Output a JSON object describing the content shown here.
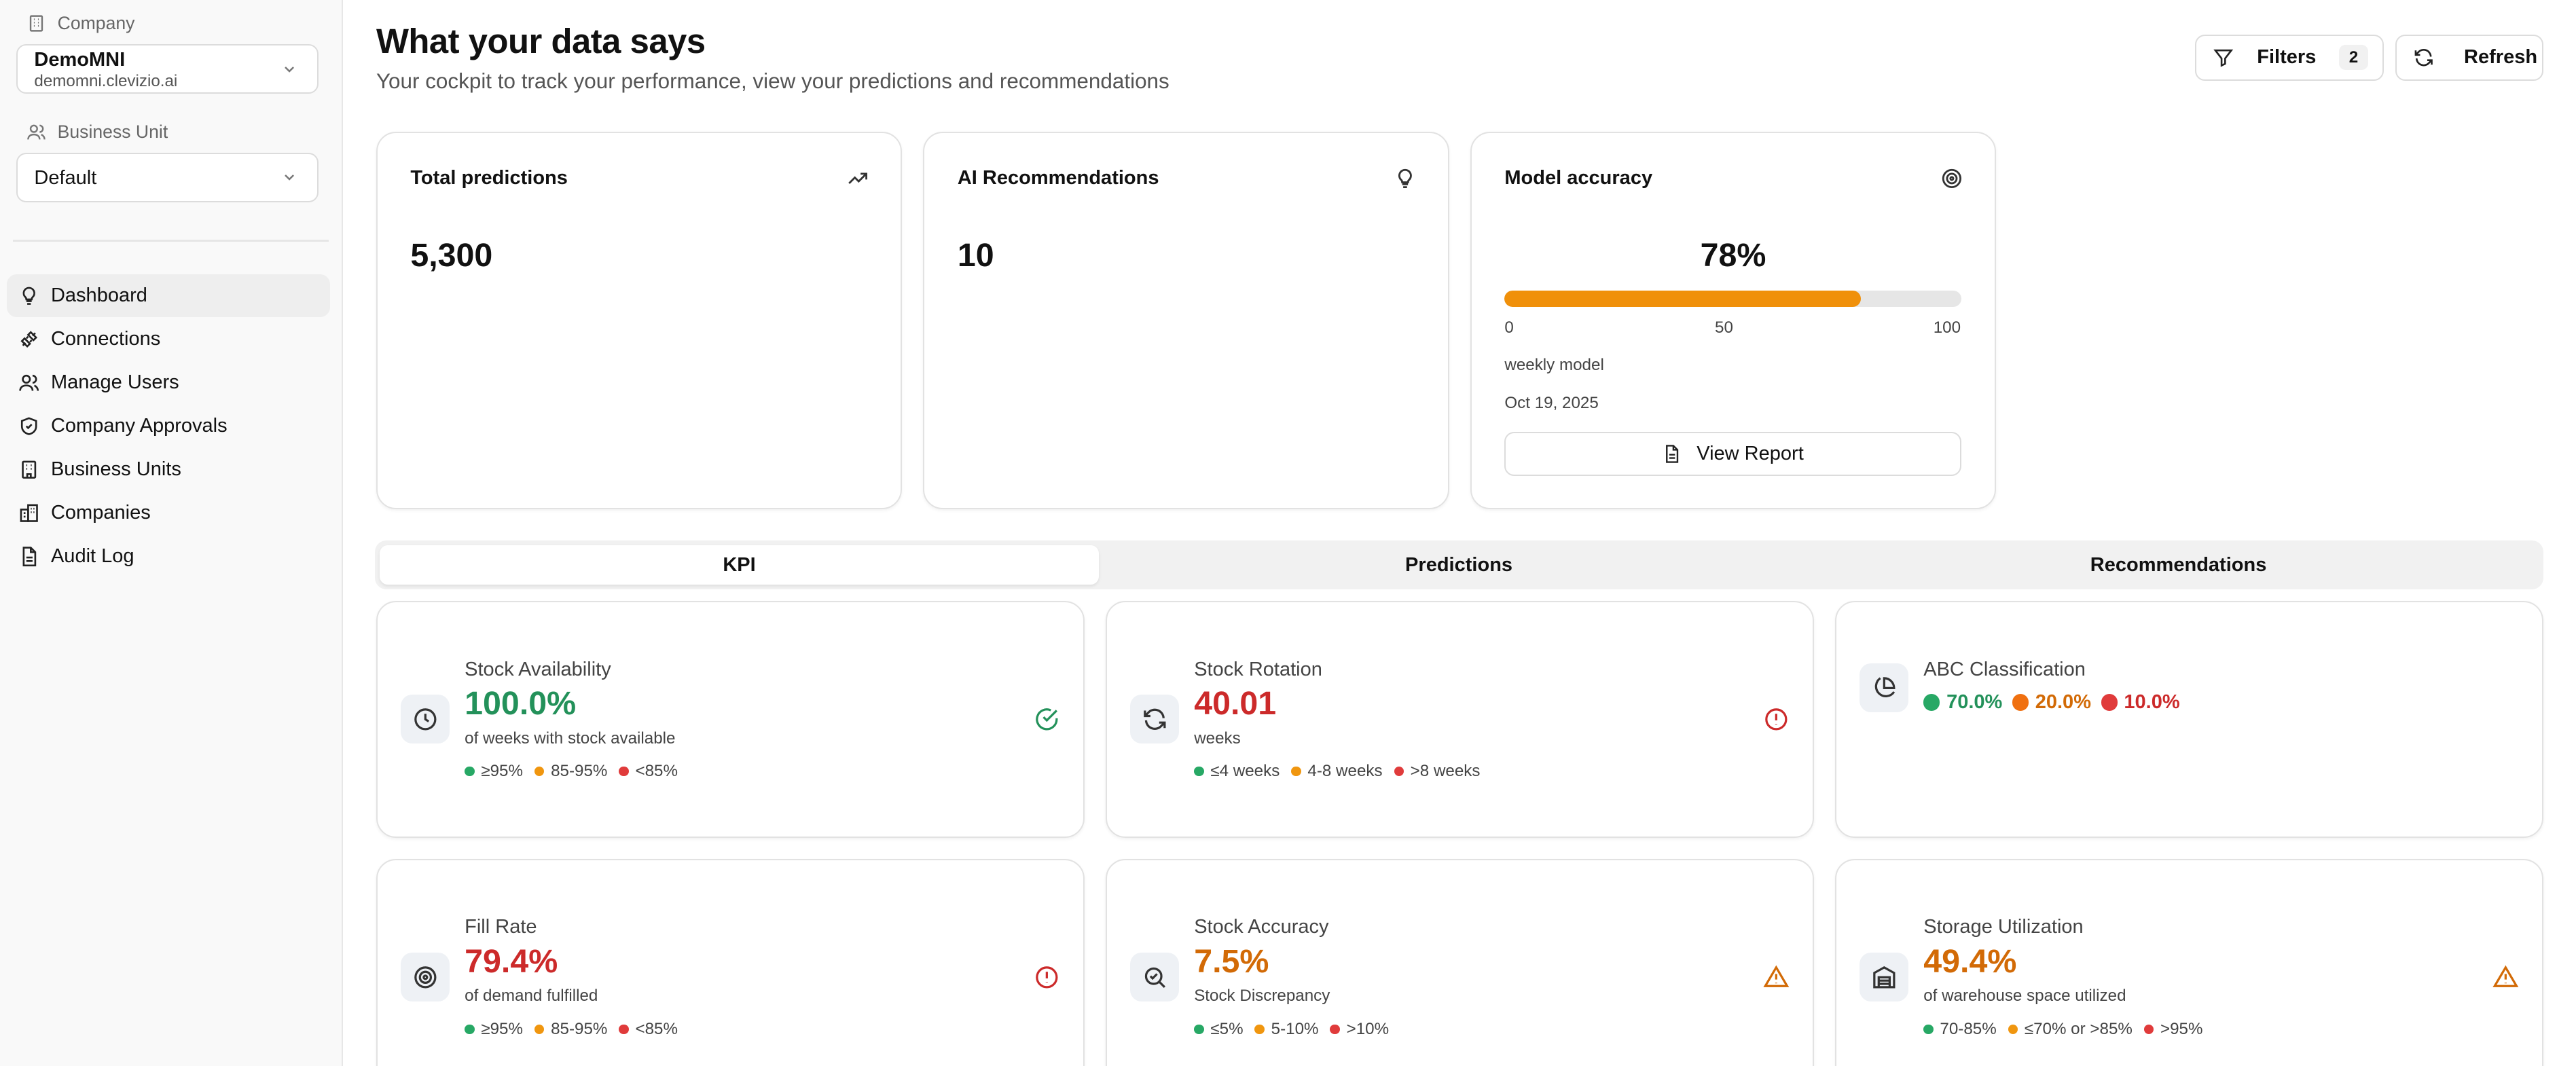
{
  "sidebar": {
    "company_label": "Company",
    "company_name": "DemoMNI",
    "company_domain": "demomni.clevizio.ai",
    "business_unit_label": "Business Unit",
    "business_unit_value": "Default",
    "nav": [
      {
        "label": "Dashboard",
        "icon": "lightbulb-icon",
        "active": true
      },
      {
        "label": "Connections",
        "icon": "plug-icon"
      },
      {
        "label": "Manage Users",
        "icon": "users-icon"
      },
      {
        "label": "Company Approvals",
        "icon": "shield-check-icon"
      },
      {
        "label": "Business Units",
        "icon": "building-icon"
      },
      {
        "label": "Companies",
        "icon": "buildings-icon"
      },
      {
        "label": "Audit Log",
        "icon": "file-text-icon"
      }
    ]
  },
  "header": {
    "title": "What your data says",
    "subtitle": "Your cockpit to track your performance, view your predictions and recommendations",
    "filters_label": "Filters",
    "filters_count": "2",
    "refresh_label": "Refresh"
  },
  "summary": {
    "total_predictions": {
      "title": "Total predictions",
      "value": "5,300",
      "icon": "trending-up-icon"
    },
    "ai_recommendations": {
      "title": "AI Recommendations",
      "value": "10",
      "icon": "lightbulb-icon"
    },
    "model_accuracy": {
      "title": "Model accuracy",
      "value": "78%",
      "level": 0.78,
      "tick_min": "0",
      "tick_mid": "50",
      "tick_max": "100",
      "model": "weekly model",
      "date": "Oct 19, 2025",
      "view_report_label": "View Report",
      "icon": "target-icon"
    }
  },
  "tabs": [
    {
      "label": "KPI",
      "active": true
    },
    {
      "label": "Predictions"
    },
    {
      "label": "Recommendations"
    }
  ],
  "kpis": {
    "stock_availability": {
      "title": "Stock Availability",
      "value": "100.0%",
      "subtitle": "of weeks with stock available",
      "legend": [
        "≥95%",
        "85-95%",
        "<85%"
      ],
      "status": "ok",
      "icon": "clock-icon"
    },
    "stock_rotation": {
      "title": "Stock Rotation",
      "value": "40.01",
      "subtitle": "weeks",
      "legend": [
        "≤4 weeks",
        "4-8 weeks",
        ">8 weeks"
      ],
      "status": "critical",
      "icon": "refresh-icon"
    },
    "abc_classification": {
      "title": "ABC Classification",
      "a": "70.0%",
      "b": "20.0%",
      "c": "10.0%",
      "icon": "pie-chart-icon"
    },
    "fill_rate": {
      "title": "Fill Rate",
      "value": "79.4%",
      "subtitle": "of demand fulfilled",
      "legend": [
        "≥95%",
        "85-95%",
        "<85%"
      ],
      "status": "critical",
      "icon": "target-icon"
    },
    "stock_accuracy": {
      "title": "Stock Accuracy",
      "value": "7.5%",
      "subtitle": "Stock Discrepancy",
      "legend": [
        "≤5%",
        "5-10%",
        ">10%"
      ],
      "status": "warning",
      "icon": "search-check-icon"
    },
    "storage_utilization": {
      "title": "Storage Utilization",
      "value": "49.4%",
      "subtitle": "of warehouse space utilized",
      "legend": [
        "70-85%",
        "≤70% or >85%",
        ">95%"
      ],
      "status": "warning",
      "icon": "warehouse-icon"
    }
  },
  "colors": {
    "green": "#23915a",
    "red": "#cc2a2a",
    "orange": "#d26a06",
    "bar": "#f0900a",
    "dot_green": "#27a865",
    "dot_orange": "#f0960f",
    "dot_red": "#e03b3b"
  }
}
